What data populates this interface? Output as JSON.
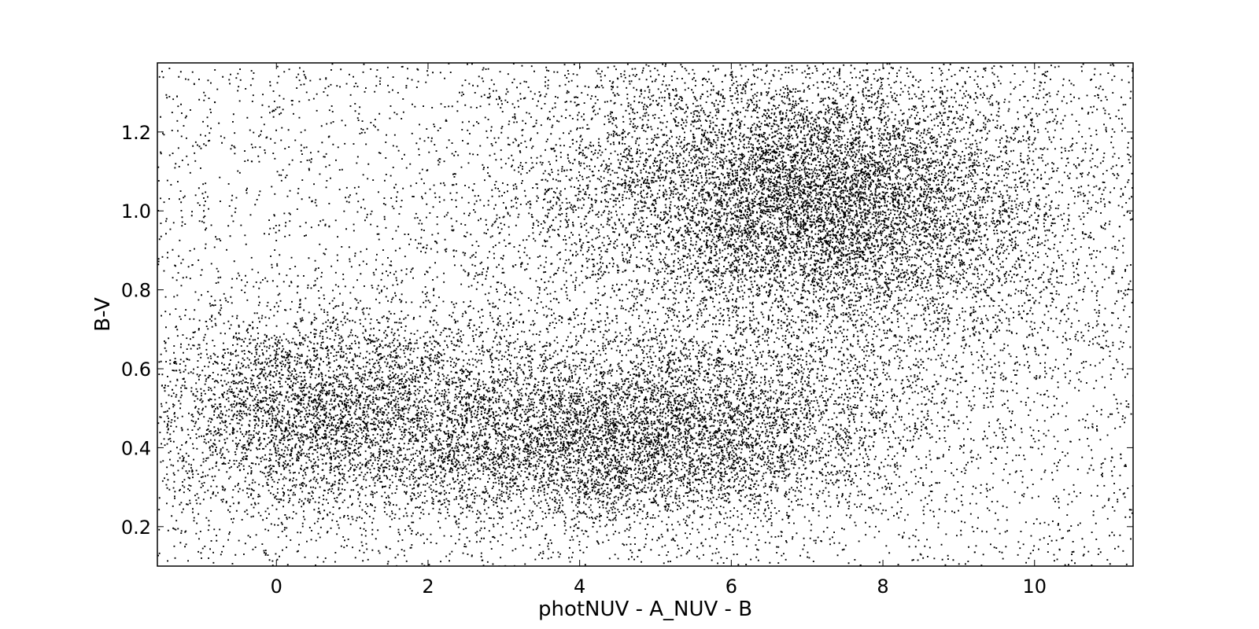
{
  "chart_data": {
    "type": "scatter",
    "title": "",
    "xlabel": "photNUV - A_NUV - B",
    "ylabel": "B-V",
    "xlim": [
      -1.57,
      11.3
    ],
    "ylim": [
      0.1,
      1.375
    ],
    "x_ticks": [
      0,
      2,
      4,
      6,
      8,
      10
    ],
    "x_tick_labels": [
      "0",
      "2",
      "4",
      "6",
      "8",
      "10"
    ],
    "y_ticks": [
      0.2,
      0.4,
      0.6,
      0.8,
      1.0,
      1.2
    ],
    "y_tick_labels": [
      "0.2",
      "0.4",
      "0.6",
      "0.8",
      "1.0",
      "1.2"
    ],
    "grid": false,
    "marker_color": "#000000",
    "point_count_estimate": 60000,
    "density_clusters": [
      {
        "x_center": 5.9,
        "y_center": 0.48,
        "x_spread": 1.45,
        "y_spread": 0.13,
        "weight": 0.34
      },
      {
        "x_center": 4.4,
        "y_center": 0.4,
        "x_spread": 1.3,
        "y_spread": 0.1,
        "weight": 0.16
      },
      {
        "x_center": 2.2,
        "y_center": 0.48,
        "x_spread": 1.25,
        "y_spread": 0.14,
        "weight": 0.14
      },
      {
        "x_center": 0.2,
        "y_center": 0.5,
        "x_spread": 0.95,
        "y_spread": 0.13,
        "weight": 0.07
      },
      {
        "x_center": 7.3,
        "y_center": 1.02,
        "x_spread": 1.1,
        "y_spread": 0.16,
        "weight": 0.11
      },
      {
        "x_center": 5.6,
        "y_center": 1.05,
        "x_spread": 1.5,
        "y_spread": 0.18,
        "weight": 0.06
      },
      {
        "x_center": 9.4,
        "y_center": 0.95,
        "x_spread": 1.1,
        "y_spread": 0.25,
        "weight": 0.03
      }
    ],
    "background_fraction": 0.09
  }
}
